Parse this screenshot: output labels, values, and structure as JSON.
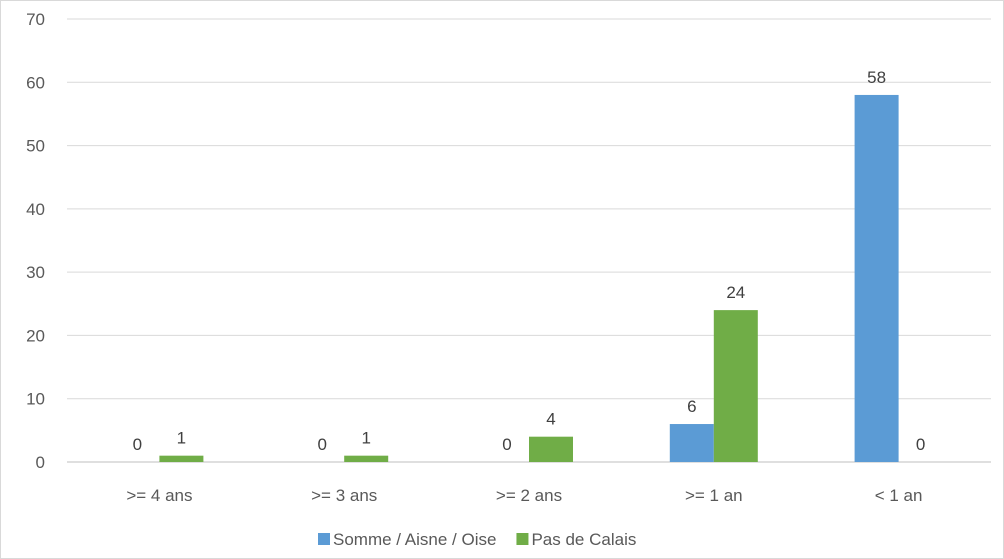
{
  "chart_data": {
    "type": "bar",
    "title": "",
    "xlabel": "",
    "ylabel": "",
    "categories": [
      ">= 4 ans",
      ">= 3 ans",
      ">= 2 ans",
      ">= 1 an",
      "< 1 an"
    ],
    "series": [
      {
        "name": "Somme / Aisne / Oise",
        "values": [
          0,
          0,
          0,
          6,
          58
        ],
        "color": "#5b9bd5"
      },
      {
        "name": "Pas de Calais",
        "values": [
          1,
          1,
          4,
          24,
          0
        ],
        "color": "#70ad47"
      }
    ],
    "ylim": [
      0,
      70
    ],
    "yticks": [
      0,
      10,
      20,
      30,
      40,
      50,
      60,
      70
    ],
    "grid": true,
    "data_labels": true,
    "legend_position": "bottom"
  }
}
